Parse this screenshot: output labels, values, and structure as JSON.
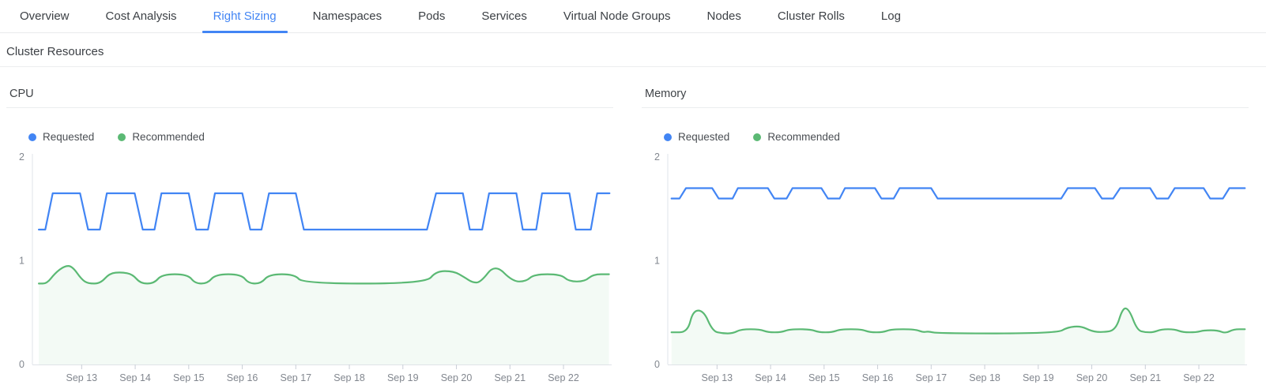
{
  "tabs": [
    {
      "label": "Overview",
      "active": false
    },
    {
      "label": "Cost Analysis",
      "active": false
    },
    {
      "label": "Right Sizing",
      "active": true
    },
    {
      "label": "Namespaces",
      "active": false
    },
    {
      "label": "Pods",
      "active": false
    },
    {
      "label": "Services",
      "active": false
    },
    {
      "label": "Virtual Node Groups",
      "active": false
    },
    {
      "label": "Nodes",
      "active": false
    },
    {
      "label": "Cluster Rolls",
      "active": false
    },
    {
      "label": "Log",
      "active": false
    }
  ],
  "section_title": "Cluster Resources",
  "colors": {
    "accent": "#4285f4",
    "requested": "#4285f4",
    "recommended": "#5bb974",
    "recommended_fill": "rgba(91,185,116,0.07)",
    "axis_line": "#dfe3e8",
    "tick_line": "#c9ced6",
    "axis_text": "#82878f"
  },
  "chart_data": [
    {
      "type": "line",
      "title": "CPU",
      "ylim": [
        0,
        2
      ],
      "y_ticks": [
        0,
        1,
        2
      ],
      "x_range": [
        12.08,
        22.9
      ],
      "x_tick_values": [
        13,
        14,
        15,
        16,
        17,
        18,
        19,
        20,
        21,
        22
      ],
      "x_tick_labels": [
        "Sep 13",
        "Sep 14",
        "Sep 15",
        "Sep 16",
        "Sep 17",
        "Sep 18",
        "Sep 19",
        "Sep 20",
        "Sep 21",
        "Sep 22"
      ],
      "legend_position": "top-left",
      "grid": false,
      "legend": [
        {
          "name": "Requested",
          "color": "#4285f4"
        },
        {
          "name": "Recommended",
          "color": "#5bb974"
        }
      ],
      "series": [
        {
          "name": "Requested",
          "color": "#4285f4",
          "smooth": false,
          "fill": null,
          "points": [
            [
              12.2,
              1.3
            ],
            [
              12.32,
              1.3
            ],
            [
              12.46,
              1.65
            ],
            [
              12.97,
              1.65
            ],
            [
              13.12,
              1.3
            ],
            [
              13.34,
              1.3
            ],
            [
              13.47,
              1.65
            ],
            [
              13.99,
              1.65
            ],
            [
              14.14,
              1.3
            ],
            [
              14.36,
              1.3
            ],
            [
              14.49,
              1.65
            ],
            [
              15.0,
              1.65
            ],
            [
              15.14,
              1.3
            ],
            [
              15.36,
              1.3
            ],
            [
              15.49,
              1.65
            ],
            [
              16.0,
              1.65
            ],
            [
              16.15,
              1.3
            ],
            [
              16.36,
              1.3
            ],
            [
              16.5,
              1.65
            ],
            [
              17.0,
              1.65
            ],
            [
              17.15,
              1.3
            ],
            [
              19.45,
              1.3
            ],
            [
              19.62,
              1.65
            ],
            [
              20.12,
              1.65
            ],
            [
              20.25,
              1.3
            ],
            [
              20.48,
              1.3
            ],
            [
              20.61,
              1.65
            ],
            [
              21.12,
              1.65
            ],
            [
              21.24,
              1.3
            ],
            [
              21.49,
              1.3
            ],
            [
              21.6,
              1.65
            ],
            [
              22.11,
              1.65
            ],
            [
              22.23,
              1.3
            ],
            [
              22.51,
              1.3
            ],
            [
              22.63,
              1.65
            ],
            [
              22.86,
              1.65
            ]
          ]
        },
        {
          "name": "Recommended",
          "color": "#5bb974",
          "smooth": true,
          "fill": "rgba(91,185,116,0.07)",
          "points": [
            [
              12.2,
              0.78
            ],
            [
              12.35,
              0.78
            ],
            [
              12.5,
              0.88
            ],
            [
              12.68,
              0.95
            ],
            [
              12.82,
              0.95
            ],
            [
              13.0,
              0.82
            ],
            [
              13.12,
              0.78
            ],
            [
              13.35,
              0.78
            ],
            [
              13.52,
              0.88
            ],
            [
              13.75,
              0.89
            ],
            [
              13.95,
              0.87
            ],
            [
              14.1,
              0.78
            ],
            [
              14.35,
              0.78
            ],
            [
              14.5,
              0.87
            ],
            [
              14.98,
              0.87
            ],
            [
              15.12,
              0.78
            ],
            [
              15.35,
              0.78
            ],
            [
              15.5,
              0.87
            ],
            [
              15.98,
              0.87
            ],
            [
              16.12,
              0.78
            ],
            [
              16.35,
              0.78
            ],
            [
              16.5,
              0.87
            ],
            [
              16.98,
              0.87
            ],
            [
              17.13,
              0.78
            ],
            [
              19.43,
              0.78
            ],
            [
              19.62,
              0.9
            ],
            [
              19.95,
              0.9
            ],
            [
              20.15,
              0.84
            ],
            [
              20.3,
              0.79
            ],
            [
              20.45,
              0.79
            ],
            [
              20.72,
              0.97
            ],
            [
              21.05,
              0.8
            ],
            [
              21.3,
              0.8
            ],
            [
              21.45,
              0.87
            ],
            [
              21.95,
              0.87
            ],
            [
              22.1,
              0.8
            ],
            [
              22.4,
              0.8
            ],
            [
              22.55,
              0.87
            ],
            [
              22.85,
              0.87
            ]
          ]
        }
      ]
    },
    {
      "type": "line",
      "title": "Memory",
      "ylim": [
        0,
        2
      ],
      "y_ticks": [
        0,
        1,
        2
      ],
      "x_range": [
        12.08,
        22.9
      ],
      "x_tick_values": [
        13,
        14,
        15,
        16,
        17,
        18,
        19,
        20,
        21,
        22
      ],
      "x_tick_labels": [
        "Sep 13",
        "Sep 14",
        "Sep 15",
        "Sep 16",
        "Sep 17",
        "Sep 18",
        "Sep 19",
        "Sep 20",
        "Sep 21",
        "Sep 22"
      ],
      "legend_position": "top-left",
      "grid": false,
      "legend": [
        {
          "name": "Requested",
          "color": "#4285f4"
        },
        {
          "name": "Recommended",
          "color": "#5bb974"
        }
      ],
      "series": [
        {
          "name": "Requested",
          "color": "#4285f4",
          "smooth": false,
          "fill": null,
          "points": [
            [
              12.15,
              1.6
            ],
            [
              12.3,
              1.6
            ],
            [
              12.42,
              1.7
            ],
            [
              12.91,
              1.7
            ],
            [
              13.03,
              1.6
            ],
            [
              13.29,
              1.6
            ],
            [
              13.39,
              1.7
            ],
            [
              13.95,
              1.7
            ],
            [
              14.07,
              1.6
            ],
            [
              14.3,
              1.6
            ],
            [
              14.41,
              1.7
            ],
            [
              14.95,
              1.7
            ],
            [
              15.07,
              1.6
            ],
            [
              15.29,
              1.6
            ],
            [
              15.39,
              1.7
            ],
            [
              15.95,
              1.7
            ],
            [
              16.07,
              1.6
            ],
            [
              16.3,
              1.6
            ],
            [
              16.41,
              1.7
            ],
            [
              17.0,
              1.7
            ],
            [
              17.12,
              1.6
            ],
            [
              19.43,
              1.6
            ],
            [
              19.55,
              1.7
            ],
            [
              20.06,
              1.7
            ],
            [
              20.19,
              1.6
            ],
            [
              20.4,
              1.6
            ],
            [
              20.53,
              1.7
            ],
            [
              21.09,
              1.7
            ],
            [
              21.21,
              1.6
            ],
            [
              21.43,
              1.6
            ],
            [
              21.55,
              1.7
            ],
            [
              22.09,
              1.7
            ],
            [
              22.21,
              1.6
            ],
            [
              22.45,
              1.6
            ],
            [
              22.57,
              1.7
            ],
            [
              22.86,
              1.7
            ]
          ]
        },
        {
          "name": "Recommended",
          "color": "#5bb974",
          "smooth": true,
          "fill": "rgba(91,185,116,0.07)",
          "points": [
            [
              12.15,
              0.31
            ],
            [
              12.45,
              0.31
            ],
            [
              12.55,
              0.52
            ],
            [
              12.75,
              0.52
            ],
            [
              12.92,
              0.32
            ],
            [
              13.1,
              0.3
            ],
            [
              13.3,
              0.3
            ],
            [
              13.45,
              0.34
            ],
            [
              13.8,
              0.34
            ],
            [
              13.95,
              0.31
            ],
            [
              14.2,
              0.31
            ],
            [
              14.35,
              0.34
            ],
            [
              14.75,
              0.34
            ],
            [
              14.9,
              0.31
            ],
            [
              15.15,
              0.31
            ],
            [
              15.3,
              0.34
            ],
            [
              15.7,
              0.34
            ],
            [
              15.85,
              0.31
            ],
            [
              16.1,
              0.31
            ],
            [
              16.25,
              0.34
            ],
            [
              16.7,
              0.34
            ],
            [
              16.85,
              0.31
            ],
            [
              16.95,
              0.32
            ],
            [
              17.1,
              0.3
            ],
            [
              19.35,
              0.3
            ],
            [
              19.55,
              0.36
            ],
            [
              19.8,
              0.37
            ],
            [
              20.0,
              0.32
            ],
            [
              20.2,
              0.31
            ],
            [
              20.45,
              0.33
            ],
            [
              20.58,
              0.55
            ],
            [
              20.7,
              0.53
            ],
            [
              20.85,
              0.33
            ],
            [
              21.0,
              0.31
            ],
            [
              21.15,
              0.31
            ],
            [
              21.3,
              0.34
            ],
            [
              21.55,
              0.34
            ],
            [
              21.7,
              0.31
            ],
            [
              21.95,
              0.31
            ],
            [
              22.1,
              0.33
            ],
            [
              22.35,
              0.33
            ],
            [
              22.5,
              0.3
            ],
            [
              22.65,
              0.34
            ],
            [
              22.86,
              0.34
            ]
          ]
        }
      ]
    }
  ]
}
